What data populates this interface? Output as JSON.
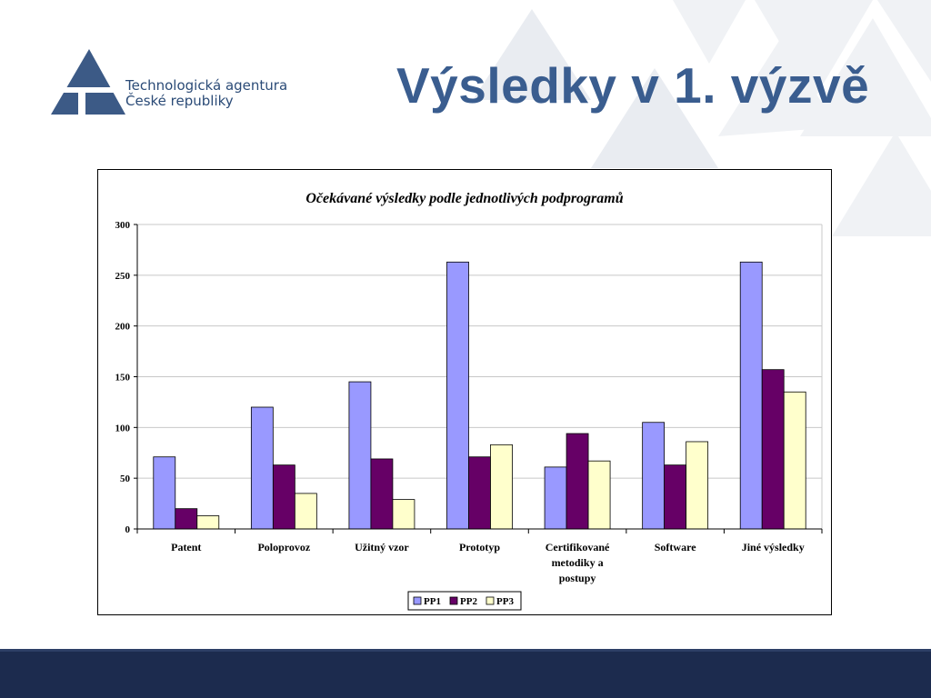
{
  "header": {
    "logo_line1": "Technologická agentura",
    "logo_line2": "České republiky",
    "title": "Výsledky v 1. výzvě"
  },
  "colors": {
    "title": "#3a5d8f",
    "footer": "#1c2b4e",
    "logo": "#3c5a86"
  },
  "chart_data": {
    "type": "bar",
    "title": "Očekávané výsledky podle jednotlivých podprogramů",
    "xlabel": "",
    "ylabel": "",
    "ylim": [
      0,
      300
    ],
    "yticks": [
      0,
      50,
      100,
      150,
      200,
      250,
      300
    ],
    "grid": true,
    "legend_position": "bottom",
    "categories": [
      [
        "Patent"
      ],
      [
        "Poloprovoz"
      ],
      [
        "Užitný vzor"
      ],
      [
        "Prototyp"
      ],
      [
        "Certifikované",
        "metodiky a",
        "postupy"
      ],
      [
        "Software"
      ],
      [
        "Jiné výsledky"
      ]
    ],
    "series": [
      {
        "name": "PP1",
        "color": "#9999ff",
        "values": [
          71,
          120,
          145,
          263,
          61,
          105,
          263
        ]
      },
      {
        "name": "PP2",
        "color": "#660066",
        "values": [
          20,
          63,
          69,
          71,
          94,
          63,
          157
        ]
      },
      {
        "name": "PP3",
        "color": "#ffffcc",
        "values": [
          13,
          35,
          29,
          83,
          67,
          86,
          135
        ]
      }
    ]
  }
}
